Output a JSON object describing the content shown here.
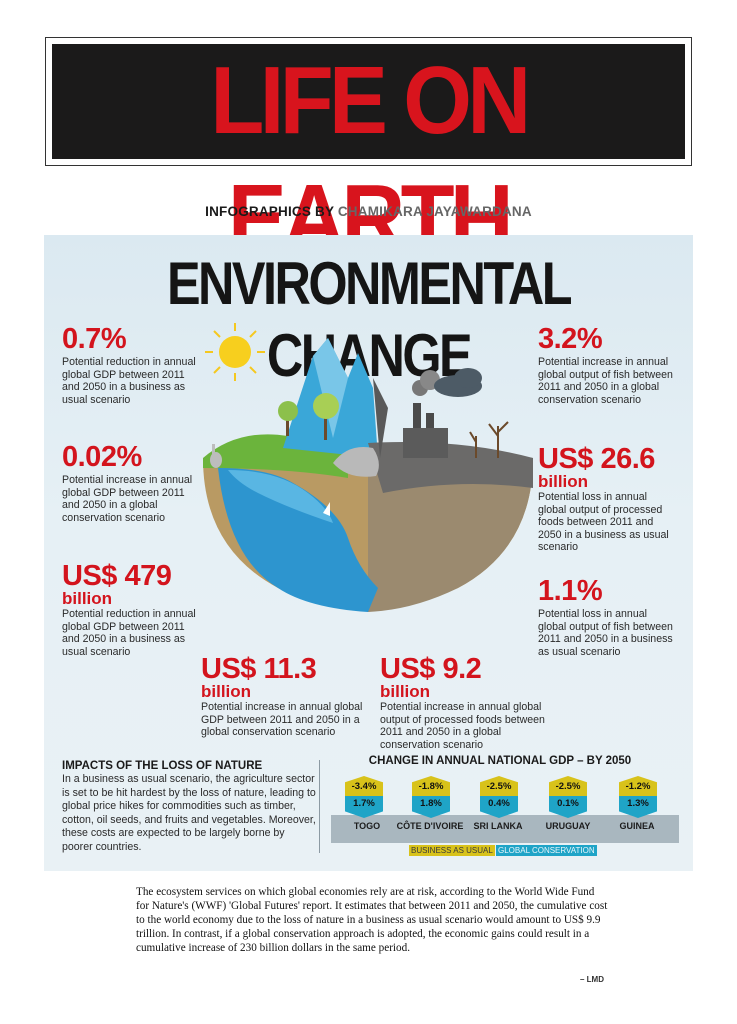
{
  "masthead": {
    "title": "LIFE ON EARTH"
  },
  "byline": {
    "prefix": "INFOGRAPHICS BY",
    "author": "CHAMIKARA JAYAWARDANA"
  },
  "heading": "ENVIRONMENTAL CHANGE",
  "stats": [
    {
      "value": "0.7%",
      "unit": "",
      "desc": "Potential reduction in annual global GDP between 2011 and 2050 in a business as usual scenario"
    },
    {
      "value": "0.02%",
      "unit": "",
      "desc": "Potential increase in annual global GDP between 2011 and 2050 in a global conservation scenario"
    },
    {
      "value": "US$ 479",
      "unit": "billion",
      "desc": "Potential reduction in annual global GDP between 2011 and 2050 in a business as usual scenario"
    },
    {
      "value": "3.2%",
      "unit": "",
      "desc": "Potential increase in annual global output of fish between 2011 and 2050 in a global conservation scenario"
    },
    {
      "value": "US$ 26.6",
      "unit": "billion",
      "desc": "Potential loss in annual global output of processed foods between 2011 and 2050 in a business as usual scenario"
    },
    {
      "value": "1.1%",
      "unit": "",
      "desc": "Potential loss in annual global output of fish between 2011 and 2050 in a business as usual scenario"
    },
    {
      "value": "US$ 11.3",
      "unit": "billion",
      "desc": "Potential increase in annual global GDP between 2011 and 2050 in a global conservation scenario"
    },
    {
      "value": "US$ 9.2",
      "unit": "billion",
      "desc": "Potential increase in annual global output of processed foods between 2011 and 2050 in a global conservation scenario"
    }
  ],
  "impacts": {
    "title": "IMPACTS OF THE LOSS OF NATURE",
    "body": "In a business as usual scenario, the agriculture sector is set to be hit hardest by the loss of nature, leading to global price hikes for commodities such as timber, cotton, oil seeds, and fruits and vegetables. Moreover, these costs are expected to be largely borne by poorer countries."
  },
  "gdp": {
    "title": "CHANGE IN ANNUAL NATIONAL GDP – BY 2050",
    "countries": [
      {
        "name": "TOGO",
        "bau": "-3.4%",
        "gc": "1.7%"
      },
      {
        "name": "CÔTE D'IVOIRE",
        "bau": "-1.8%",
        "gc": "1.8%"
      },
      {
        "name": "SRI LANKA",
        "bau": "-2.5%",
        "gc": "0.4%"
      },
      {
        "name": "URUGUAY",
        "bau": "-2.5%",
        "gc": "0.1%"
      },
      {
        "name": "GUINEA",
        "bau": "-1.2%",
        "gc": "1.3%"
      }
    ],
    "legend": {
      "bau": "BUSINESS AS USUAL",
      "gc": "GLOBAL CONSERVATION"
    },
    "colors": {
      "bau": "#d8c21a",
      "gc": "#1fa4c7"
    }
  },
  "footer": {
    "text": "The ecosystem services on which global economies rely are at risk, according to the World Wide Fund for Nature's (WWF) 'Global Futures' report. It estimates that between 2011 and 2050, the cumulative cost to the world economy due to the loss of nature in a business as usual scenario would amount to US$ 9.9 trillion. In contrast, if a global conservation approach is adopted, the economic gains could result in a cumulative increase of 230 billion dollars in the same period.",
    "credit": "– LMD"
  },
  "colors": {
    "accent": "#d3141d",
    "masthead_bg": "#1b1a1a",
    "panel_bg": "#dde9f0"
  }
}
